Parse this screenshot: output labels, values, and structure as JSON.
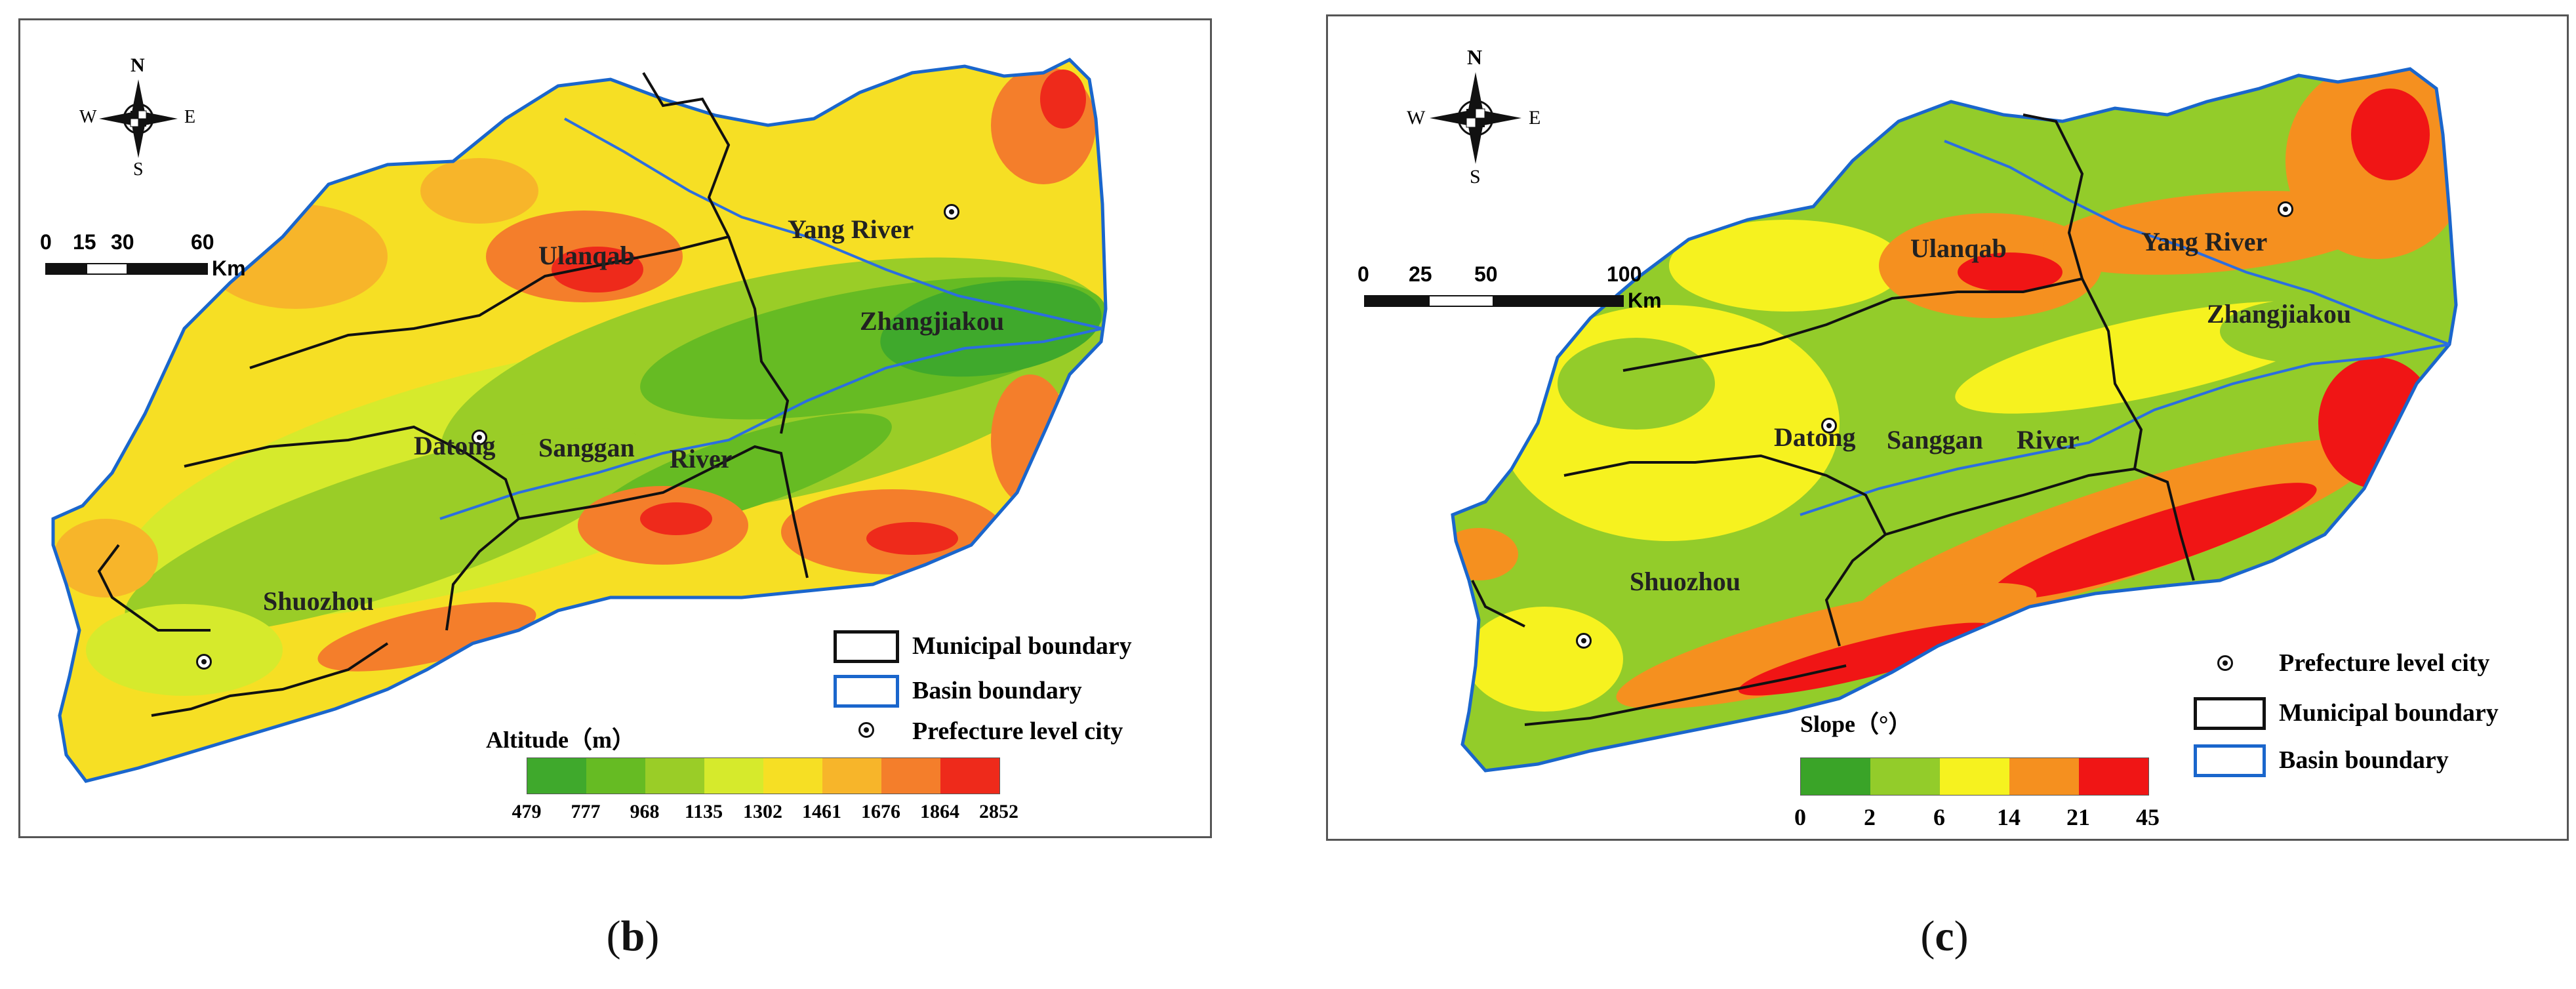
{
  "panels": {
    "b": {
      "caption_open": "(",
      "caption_letter": "b",
      "caption_close": ")",
      "compass": {
        "n": "N",
        "s": "S",
        "e": "E",
        "w": "W"
      },
      "scale": {
        "ticks": [
          "0",
          "15",
          "30",
          "60"
        ],
        "unit": "Km"
      },
      "labels": {
        "ulanqab": "Ulanqab",
        "yang_river": "Yang River",
        "zhangjiakou": "Zhangjiakou",
        "datong": "Datong",
        "sanggan": "Sanggan",
        "river": "River",
        "shuozhou": "Shuozhou"
      },
      "legend": {
        "municipal": "Municipal boundary",
        "basin": "Basin boundary",
        "city": "Prefecture level city"
      },
      "colorbar": {
        "title": "Altitude（m）",
        "ticks": [
          "479",
          "777",
          "968",
          "1135",
          "1302",
          "1461",
          "1676",
          "1864",
          "2852"
        ],
        "colors": [
          "#3fa92c",
          "#66bb23",
          "#9acd27",
          "#d6ea2c",
          "#f6df24",
          "#f7b52a",
          "#f47e2b",
          "#ee2a1b"
        ]
      }
    },
    "c": {
      "caption_open": "(",
      "caption_letter": "c",
      "caption_close": ")",
      "compass": {
        "n": "N",
        "s": "S",
        "e": "E",
        "w": "W"
      },
      "scale": {
        "ticks": [
          "0",
          "25",
          "50",
          "100"
        ],
        "unit": "Km"
      },
      "labels": {
        "ulanqab": "Ulanqab",
        "yang_river": "Yang River",
        "zhangjiakou": "Zhangjiakou",
        "datong": "Datong",
        "sanggan": "Sanggan",
        "river": "River",
        "shuozhou": "Shuozhou"
      },
      "legend": {
        "city": "Prefecture level city",
        "municipal": "Municipal boundary",
        "basin": "Basin boundary"
      },
      "colorbar": {
        "title": "Slope（°）",
        "ticks": [
          "0",
          "2",
          "6",
          "14",
          "21",
          "45"
        ],
        "colors": [
          "#3aa428",
          "#93cc2a",
          "#f6f21f",
          "#f5901f",
          "#f01515"
        ]
      }
    }
  }
}
